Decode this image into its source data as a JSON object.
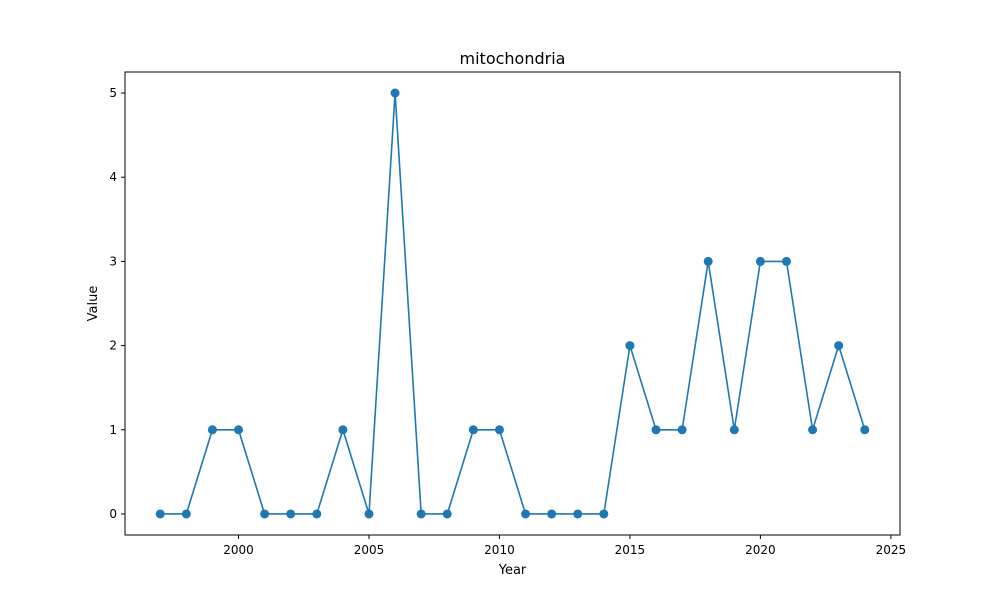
{
  "chart_data": {
    "type": "line",
    "title": "mitochondria",
    "xlabel": "Year",
    "ylabel": "Value",
    "x": [
      1997,
      1998,
      1999,
      2000,
      2001,
      2002,
      2003,
      2004,
      2005,
      2006,
      2007,
      2008,
      2009,
      2010,
      2011,
      2012,
      2013,
      2014,
      2015,
      2016,
      2017,
      2018,
      2019,
      2020,
      2021,
      2022,
      2023,
      2024
    ],
    "series": [
      {
        "values": [
          0,
          0,
          1,
          1,
          0,
          0,
          0,
          1,
          0,
          5,
          0,
          0,
          1,
          1,
          0,
          0,
          0,
          0,
          2,
          1,
          1,
          3,
          1,
          3,
          3,
          1,
          2,
          1
        ]
      }
    ],
    "xlim": [
      1995.65,
      2025.35
    ],
    "ylim": [
      -0.25,
      5.25
    ],
    "xticks": [
      2000,
      2005,
      2010,
      2015,
      2020,
      2025
    ],
    "yticks": [
      0,
      1,
      2,
      3,
      4,
      5
    ],
    "grid": false,
    "legend": "none",
    "color": "#1f77b4"
  }
}
